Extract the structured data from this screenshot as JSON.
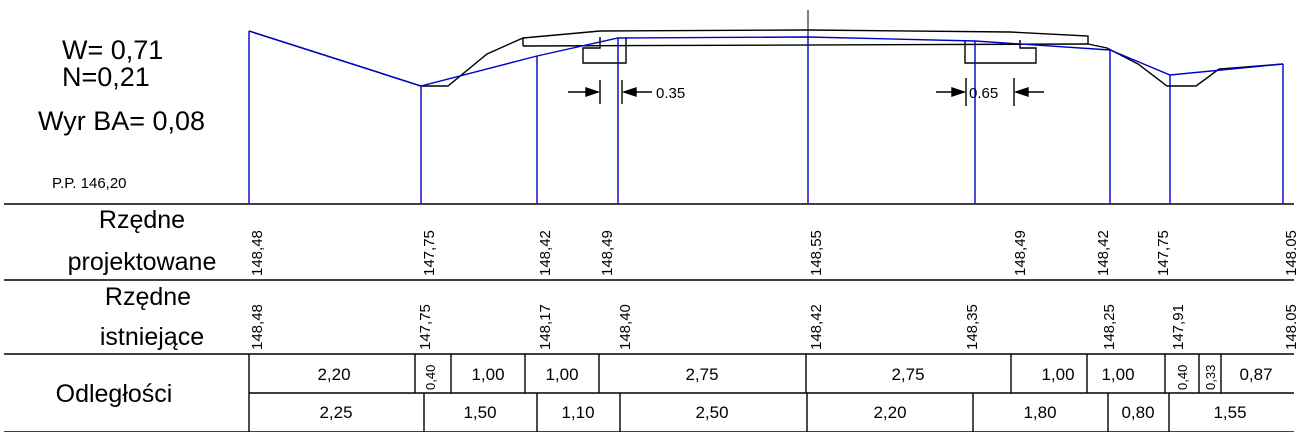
{
  "info": {
    "w": "W= 0,71",
    "n": "N=0,21",
    "wyr": "Wyr BA= 0,08",
    "pp": "P.P. 146,20"
  },
  "dims": {
    "left": "0.35",
    "right": "0.65"
  },
  "rows": {
    "projected_label": [
      "Rzędne",
      "projektowane"
    ],
    "existing_label": [
      "Rzędne",
      "istniejące"
    ],
    "distance_label": "Odległości"
  },
  "projected_elevations": [
    "148,48",
    "147,75",
    "148,42",
    "148,49",
    "148,55",
    "148,49",
    "148,42",
    "147,75",
    "148,05"
  ],
  "existing_elevations": [
    "148,48",
    "147,75",
    "148,17",
    "148,40",
    "148,42",
    "148,35",
    "148,25",
    "147,91",
    "148,05"
  ],
  "distances_top": [
    "2,20",
    "0,40",
    "1,00",
    "1,00",
    "2,75",
    "2,75",
    "1,00",
    "1,00",
    "0,40",
    "0,33",
    "0,87"
  ],
  "distances_bottom": [
    "2,25",
    "1,50",
    "1,10",
    "2,50",
    "2,20",
    "1,80",
    "0,80",
    "1,55"
  ],
  "colors": {
    "design_line": "#0000cc",
    "existing_line": "#000000",
    "grid": "#000000"
  }
}
